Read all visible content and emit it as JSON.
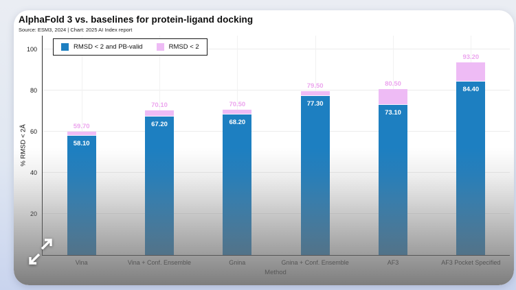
{
  "icons": {
    "expand_button": "expand-arrows-icon"
  },
  "colors": {
    "bar_blue": "#1d7fc1",
    "bar_pink": "#eebbf5",
    "pink_label_text": "#eca6ee",
    "axis_line": "#2b2b2b",
    "gridline": "#ececec"
  },
  "chart_data": {
    "type": "bar",
    "subtype": "stacked-cap",
    "title": "AlphaFold 3 vs. baselines for protein-ligand docking",
    "source": "Source: ESM3, 2024 | Chart: 2025 AI Index report",
    "xlabel": "Method",
    "ylabel": "% RMSD < 2Å",
    "ylim": [
      0,
      107
    ],
    "yticks": [
      20,
      40,
      60,
      80,
      100
    ],
    "grid": true,
    "legend_position": "top-left-inside-plot",
    "categories": [
      "Vina",
      "Vina + Conf. Ensemble",
      "Gnina",
      "Gnina + Conf. Ensemble",
      "AF3",
      "AF3 Pocket Specified"
    ],
    "series": [
      {
        "name": "RMSD < 2 and PB-valid",
        "color": "#1d7fc1",
        "values": [
          58.1,
          67.2,
          68.2,
          77.3,
          73.1,
          84.4
        ],
        "label_style": "white, inside top of blue bar"
      },
      {
        "name": "RMSD < 2",
        "color": "#eebbf5",
        "values": [
          59.7,
          70.1,
          70.5,
          79.5,
          80.5,
          93.2
        ],
        "note": "totals; drawn as pink cap from blue value up to this total, label in pink above bar",
        "label_style": "pink, above bar"
      }
    ],
    "value_label_decimals": 2
  }
}
